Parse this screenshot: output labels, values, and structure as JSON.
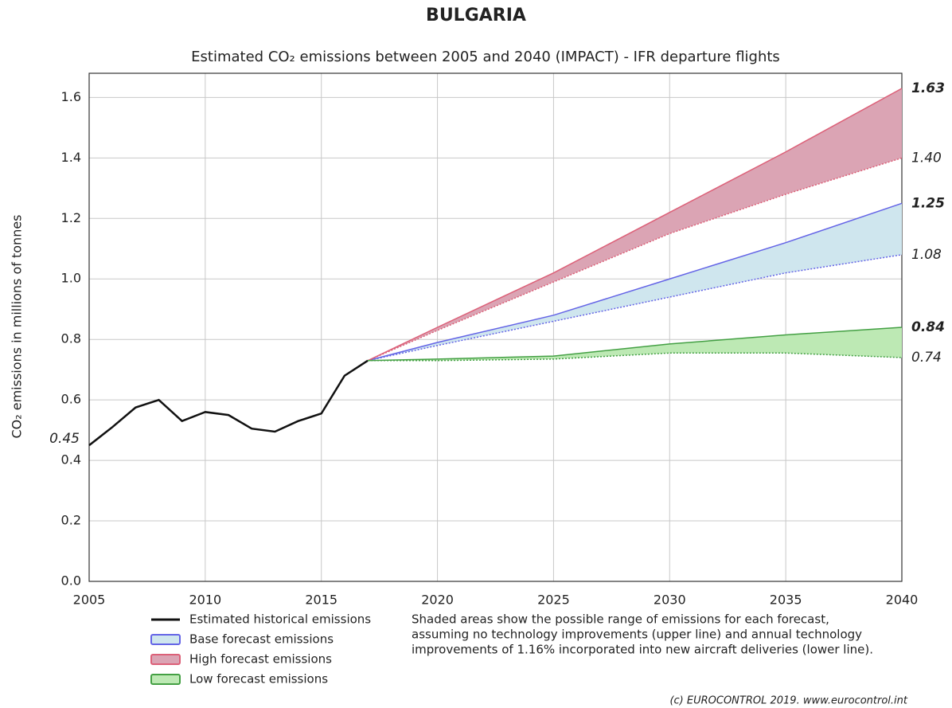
{
  "chart_data": {
    "type": "line",
    "title": "BULGARIA",
    "subtitle": "Estimated CO₂ emissions between 2005 and 2040 (IMPACT) - IFR departure flights",
    "y_label": "CO₂ emissions in millions of tonnes",
    "note": [
      "Shaded areas show the possible range of emissions for each forecast,",
      "assuming no technology improvements (upper line) and annual technology",
      "improvements of 1.16% incorporated into new aircraft deliveries (lower line)."
    ],
    "credit": "(c) EUROCONTROL 2019. www.eurocontrol.int",
    "xlim": [
      2005,
      2040
    ],
    "xticks": [
      2005,
      2010,
      2015,
      2020,
      2025,
      2030,
      2035,
      2040
    ],
    "ylim": [
      0,
      1.68
    ],
    "yticks": [
      {
        "value": 0,
        "label": "0.0"
      },
      0.2,
      0.4,
      0.6,
      0.8,
      {
        "value": 1,
        "label": "1.0"
      },
      1.2,
      1.4,
      1.6
    ],
    "grid": true,
    "series": [
      {
        "name": "Estimated historical emissions",
        "color": "#111111",
        "x": [
          2005,
          2006,
          2007,
          2008,
          2009,
          2010,
          2011,
          2012,
          2013,
          2014,
          2015,
          2016,
          2017
        ],
        "values": [
          0.45,
          0.51,
          0.575,
          0.6,
          0.53,
          0.56,
          0.55,
          0.505,
          0.495,
          0.53,
          0.555,
          0.68,
          0.73
        ],
        "start_label": "0.45",
        "label_color": "#808080"
      },
      {
        "name": "Base forecast emissions",
        "color": "#6464e6",
        "fill": "#cfe6ee",
        "x": [
          2017,
          2020,
          2025,
          2030,
          2035,
          2040
        ],
        "values": [
          0.73,
          0.79,
          0.88,
          1.0,
          1.12,
          1.25
        ],
        "lower_values": [
          0.73,
          0.78,
          0.86,
          0.94,
          1.02,
          1.08
        ],
        "end_label": "1.25",
        "lower_end_label": "1.08",
        "label_color": "#2424c0",
        "lower_label_color": "#8ccbe8"
      },
      {
        "name": "High forecast emissions",
        "color": "#dc6078",
        "fill": "#dba4b4",
        "x": [
          2017,
          2020,
          2025,
          2030,
          2035,
          2040
        ],
        "values": [
          0.73,
          0.84,
          1.02,
          1.22,
          1.42,
          1.63
        ],
        "lower_values": [
          0.73,
          0.83,
          0.99,
          1.15,
          1.28,
          1.4
        ],
        "end_label": "1.63",
        "lower_end_label": "1.40",
        "label_color": "#a0202c",
        "lower_label_color": "#f08462"
      },
      {
        "name": "Low forecast emissions",
        "color": "#44a044",
        "fill": "#bde9b4",
        "x": [
          2017,
          2020,
          2025,
          2030,
          2035,
          2040
        ],
        "values": [
          0.73,
          0.735,
          0.745,
          0.785,
          0.815,
          0.84
        ],
        "lower_values": [
          0.73,
          0.73,
          0.735,
          0.755,
          0.755,
          0.74
        ],
        "end_label": "0.84",
        "lower_end_label": "0.74",
        "label_color": "#208020",
        "lower_label_color": "#208020"
      }
    ]
  }
}
